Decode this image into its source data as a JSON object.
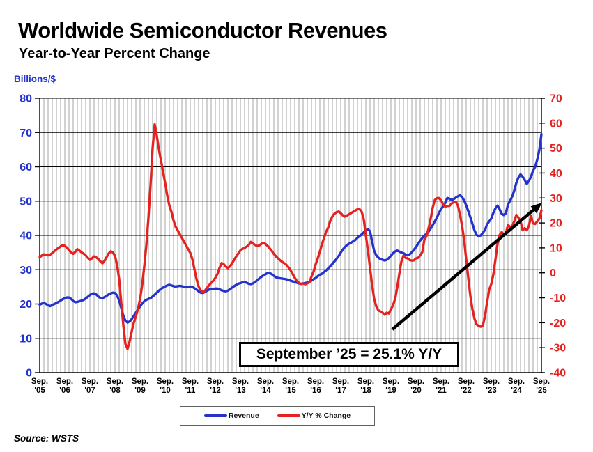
{
  "header": {
    "title": "Worldwide Semiconductor Revenues",
    "subtitle": "Year-to-Year Percent Change",
    "left_axis_title": "Billions/$"
  },
  "annotation": {
    "text": "September ’25 = 25.1% Y/Y"
  },
  "legend": {
    "items": [
      {
        "label": "Revenue",
        "color": "#2333cc"
      },
      {
        "label": "Y/Y % Change",
        "color": "#e42320"
      }
    ]
  },
  "source": "Source: WSTS",
  "colors": {
    "revenue_line": "#2333cc",
    "yoy_line": "#e42320",
    "left_axis_text": "#2333cc",
    "right_axis_text": "#e42320",
    "grid_vertical": "#a6a6a6",
    "grid_horizontal": "#000000",
    "axis_frame": "#000000",
    "arrow": "#000000"
  },
  "chart_data": {
    "type": "line",
    "title": "Worldwide Semiconductor Revenues",
    "subtitle": "Year-to-Year Percent Change",
    "x_description": "Monthly (3-month moving average), September 2005 through September 2025",
    "x_month_label": "Sep.",
    "x_year_labels": [
      "'05",
      "'06",
      "'07",
      "'08",
      "'09",
      "'10",
      "'11",
      "'12",
      "'13",
      "'14",
      "'15",
      "'16",
      "'17",
      "'18",
      "'19",
      "'20",
      "'21",
      "'22",
      "'23",
      "'24",
      "'25"
    ],
    "left_axis": {
      "label": "Billions/$",
      "min": 0,
      "max": 80,
      "ticks": [
        0,
        10,
        20,
        30,
        40,
        50,
        60,
        70,
        80
      ]
    },
    "right_axis": {
      "label": "Y/Y % Change",
      "min": -40,
      "max": 70,
      "ticks": [
        -40,
        -30,
        -20,
        -10,
        0,
        10,
        20,
        30,
        40,
        50,
        60,
        70
      ]
    },
    "grid": {
      "vertical_every_months": 2,
      "horizontal_every_left_units": 10
    },
    "legend_position": "bottom-center",
    "series": [
      {
        "name": "Revenue",
        "axis": "left",
        "color": "#2333cc",
        "values": [
          19.8,
          20.1,
          20.3,
          20.0,
          19.6,
          19.4,
          19.7,
          20.0,
          20.3,
          20.6,
          21.0,
          21.4,
          21.7,
          21.9,
          21.9,
          21.5,
          20.9,
          20.5,
          20.6,
          20.8,
          21.0,
          21.2,
          21.6,
          22.1,
          22.6,
          23.0,
          23.1,
          22.8,
          22.2,
          21.8,
          21.7,
          22.0,
          22.4,
          22.8,
          23.1,
          23.3,
          23.2,
          22.5,
          21.0,
          18.9,
          16.6,
          15.1,
          14.6,
          14.9,
          15.6,
          16.5,
          17.5,
          18.4,
          19.3,
          20.1,
          20.8,
          21.2,
          21.5,
          21.7,
          22.2,
          22.7,
          23.3,
          23.9,
          24.4,
          24.8,
          25.1,
          25.4,
          25.6,
          25.4,
          25.2,
          25.1,
          25.2,
          25.3,
          25.2,
          25.0,
          24.9,
          25.0,
          25.1,
          25.0,
          24.6,
          24.2,
          23.7,
          23.3,
          23.2,
          23.5,
          23.9,
          24.2,
          24.4,
          24.4,
          24.5,
          24.5,
          24.3,
          24.0,
          23.8,
          23.7,
          23.9,
          24.3,
          24.8,
          25.2,
          25.6,
          25.9,
          26.1,
          26.3,
          26.4,
          26.2,
          25.9,
          25.8,
          26.0,
          26.4,
          26.9,
          27.4,
          27.9,
          28.3,
          28.7,
          29.0,
          29.0,
          28.7,
          28.2,
          27.8,
          27.6,
          27.5,
          27.4,
          27.3,
          27.2,
          27.0,
          26.8,
          26.6,
          26.4,
          26.2,
          26.0,
          25.9,
          26.0,
          26.1,
          26.3,
          26.5,
          26.8,
          27.2,
          27.6,
          28.1,
          28.5,
          28.8,
          29.3,
          29.8,
          30.4,
          31.0,
          31.7,
          32.4,
          33.2,
          34.0,
          35.0,
          35.9,
          36.6,
          37.2,
          37.6,
          37.9,
          38.3,
          38.7,
          39.3,
          39.8,
          40.3,
          40.9,
          41.4,
          41.8,
          41.2,
          38.2,
          35.5,
          34.2,
          33.5,
          33.1,
          32.9,
          32.7,
          32.9,
          33.4,
          34.1,
          34.8,
          35.3,
          35.6,
          35.3,
          35.0,
          34.8,
          34.4,
          34.2,
          34.5,
          35.1,
          35.8,
          36.6,
          37.6,
          38.5,
          39.2,
          40.0,
          40.4,
          41.1,
          42.0,
          43.0,
          44.1,
          45.2,
          46.6,
          47.7,
          48.5,
          49.5,
          50.9,
          50.7,
          50.3,
          50.6,
          51.0,
          51.4,
          51.7,
          51.2,
          50.2,
          48.8,
          47.1,
          45.3,
          43.3,
          41.4,
          40.1,
          39.8,
          40.0,
          40.8,
          41.6,
          43.2,
          44.1,
          44.9,
          46.6,
          47.9,
          48.7,
          47.6,
          46.3,
          45.9,
          46.5,
          49.0,
          50.1,
          51.3,
          53.1,
          55.3,
          56.9,
          57.8,
          57.1,
          56.2,
          55.0,
          55.9,
          57.1,
          58.9,
          60.0,
          62.1,
          64.9,
          69.5
        ]
      },
      {
        "name": "Y/Y % Change",
        "axis": "right",
        "color": "#e42320",
        "values": [
          6.3,
          6.9,
          7.4,
          7.2,
          7.0,
          7.3,
          7.9,
          8.7,
          9.4,
          10.0,
          10.6,
          11.2,
          10.8,
          10.1,
          9.2,
          8.2,
          7.6,
          8.4,
          9.5,
          8.9,
          8.2,
          7.7,
          7.0,
          6.0,
          5.2,
          5.8,
          6.6,
          6.2,
          5.6,
          4.6,
          3.8,
          4.8,
          6.3,
          7.8,
          8.6,
          8.2,
          6.8,
          3.2,
          -2.5,
          -12.0,
          -21.0,
          -28.5,
          -30.5,
          -27.5,
          -23.5,
          -20.0,
          -17.5,
          -14.5,
          -10.5,
          -5.0,
          2.5,
          11.0,
          22.0,
          35.0,
          50.0,
          59.5,
          55.0,
          49.5,
          45.0,
          40.5,
          36.0,
          31.0,
          27.0,
          24.5,
          21.0,
          18.5,
          17.0,
          15.5,
          14.0,
          12.5,
          11.0,
          9.5,
          8.0,
          5.5,
          1.5,
          -2.5,
          -5.5,
          -7.0,
          -7.8,
          -7.2,
          -6.0,
          -5.0,
          -4.0,
          -3.2,
          -2.0,
          -0.5,
          2.0,
          3.9,
          3.5,
          2.5,
          1.9,
          2.6,
          3.8,
          5.2,
          6.6,
          7.8,
          9.0,
          9.6,
          10.0,
          10.5,
          11.2,
          12.4,
          11.8,
          11.2,
          10.7,
          11.0,
          11.6,
          12.0,
          11.6,
          10.8,
          9.8,
          8.8,
          7.6,
          6.6,
          5.8,
          5.0,
          4.4,
          3.8,
          3.2,
          2.2,
          1.0,
          -0.5,
          -2.0,
          -3.2,
          -4.0,
          -4.5,
          -4.3,
          -4.6,
          -4.2,
          -3.8,
          -1.5,
          0.5,
          3.4,
          5.8,
          8.5,
          11.5,
          13.9,
          16.5,
          18.1,
          20.9,
          22.6,
          23.7,
          24.3,
          24.6,
          23.9,
          23.0,
          22.5,
          23.0,
          23.5,
          24.0,
          24.5,
          25.0,
          25.5,
          25.5,
          24.5,
          21.5,
          15.0,
          9.0,
          2.0,
          -5.0,
          -10.5,
          -13.5,
          -15.0,
          -15.5,
          -16.0,
          -16.8,
          -16.0,
          -16.3,
          -14.6,
          -13.0,
          -10.5,
          -6.0,
          -0.5,
          4.5,
          6.9,
          6.0,
          5.8,
          5.1,
          4.9,
          5.0,
          5.8,
          6.0,
          7.0,
          8.3,
          13.2,
          14.7,
          17.8,
          21.7,
          26.2,
          29.2,
          29.9,
          30.0,
          29.0,
          27.5,
          26.5,
          26.8,
          26.8,
          27.8,
          28.4,
          28.5,
          27.0,
          23.5,
          19.0,
          13.3,
          5.5,
          -2.0,
          -9.2,
          -14.7,
          -18.5,
          -20.7,
          -21.3,
          -21.6,
          -21.1,
          -17.3,
          -11.8,
          -6.8,
          -4.5,
          -0.7,
          5.3,
          11.6,
          15.2,
          16.3,
          15.2,
          15.8,
          19.3,
          18.3,
          18.7,
          20.6,
          23.2,
          22.1,
          20.7,
          17.1,
          17.9,
          17.1,
          18.8,
          22.7,
          19.8,
          19.6,
          20.6,
          21.7,
          25.1
        ]
      }
    ],
    "annotations": [
      {
        "text": "September ’25 = 25.1% Y/Y",
        "points_to": "last value of Y/Y % Change series (Sep 2025, +25.1%)"
      }
    ]
  }
}
